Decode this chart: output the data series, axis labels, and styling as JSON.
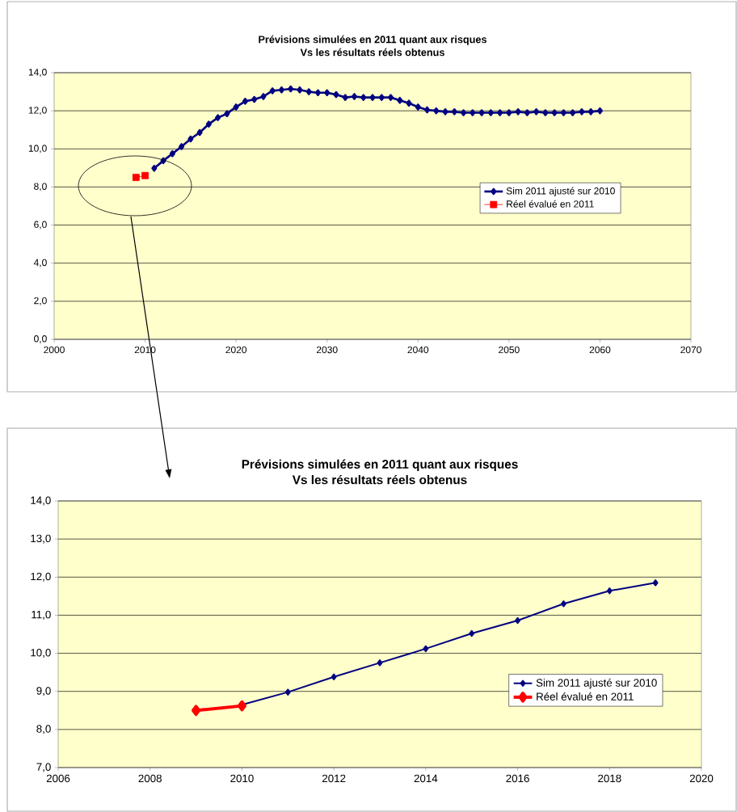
{
  "chart_data": [
    {
      "type": "line",
      "title": "Prévisions simulées en 2011 quant aux risques",
      "subtitle": "Vs les résultats réels obtenus",
      "xlim": [
        2000,
        2070
      ],
      "xticks": [
        2000,
        2010,
        2020,
        2030,
        2040,
        2050,
        2060,
        2070
      ],
      "ylim": [
        0,
        14
      ],
      "yticks": [
        {
          "value": 0,
          "label": "0,0"
        },
        {
          "value": 2,
          "label": "2,0"
        },
        {
          "value": 4,
          "label": "4,0"
        },
        {
          "value": 6,
          "label": "6,0"
        },
        {
          "value": 8,
          "label": "8,0"
        },
        {
          "value": 10,
          "label": "10,0"
        },
        {
          "value": 12,
          "label": "12,0"
        },
        {
          "value": 14,
          "label": "14,0"
        }
      ],
      "grid": "y",
      "legend": "right",
      "series": [
        {
          "name": "Sim 2011 ajusté sur 2010",
          "color": "#000080",
          "marker": "diamond",
          "x": [
            2011,
            2012,
            2013,
            2014,
            2015,
            2016,
            2017,
            2018,
            2019,
            2020,
            2021,
            2022,
            2023,
            2024,
            2025,
            2026,
            2027,
            2028,
            2029,
            2030,
            2031,
            2032,
            2033,
            2034,
            2035,
            2036,
            2037,
            2038,
            2039,
            2040,
            2041,
            2042,
            2043,
            2044,
            2045,
            2046,
            2047,
            2048,
            2049,
            2050,
            2051,
            2052,
            2053,
            2054,
            2055,
            2056,
            2057,
            2058,
            2059,
            2060
          ],
          "values": [
            8.98,
            9.38,
            9.75,
            10.12,
            10.52,
            10.86,
            11.3,
            11.64,
            11.85,
            12.2,
            12.5,
            12.6,
            12.75,
            13.05,
            13.1,
            13.15,
            13.1,
            13.0,
            12.95,
            12.95,
            12.85,
            12.7,
            12.75,
            12.7,
            12.7,
            12.7,
            12.7,
            12.55,
            12.4,
            12.2,
            12.05,
            12.0,
            11.95,
            11.95,
            11.9,
            11.9,
            11.9,
            11.9,
            11.9,
            11.9,
            11.95,
            11.9,
            11.95,
            11.9,
            11.9,
            11.9,
            11.9,
            11.95,
            11.95,
            12.0
          ]
        },
        {
          "name": "Réel évalué en 2011",
          "color": "#ff0000",
          "marker": "square",
          "x": [
            2009,
            2010
          ],
          "values": [
            8.5,
            8.6
          ]
        }
      ]
    },
    {
      "type": "line",
      "title": "Prévisions simulées en 2011 quant aux risques",
      "subtitle": "Vs les résultats réels obtenus",
      "xlim": [
        2006,
        2020
      ],
      "xticks": [
        2006,
        2008,
        2010,
        2012,
        2014,
        2016,
        2018,
        2020
      ],
      "ylim": [
        7,
        14
      ],
      "yticks": [
        {
          "value": 7,
          "label": "7,0"
        },
        {
          "value": 8,
          "label": "8,0"
        },
        {
          "value": 9,
          "label": "9,0"
        },
        {
          "value": 10,
          "label": "10,0"
        },
        {
          "value": 11,
          "label": "11,0"
        },
        {
          "value": 12,
          "label": "12,0"
        },
        {
          "value": 13,
          "label": "13,0"
        },
        {
          "value": 14,
          "label": "14,0"
        }
      ],
      "grid": "y",
      "legend": "bottom right",
      "series": [
        {
          "name": "Sim 2011 ajusté sur 2010",
          "color": "#000080",
          "marker": "diamond",
          "x": [
            2010,
            2011,
            2012,
            2013,
            2014,
            2015,
            2016,
            2017,
            2018,
            2019
          ],
          "values": [
            8.65,
            8.98,
            9.38,
            9.75,
            10.12,
            10.52,
            10.86,
            11.3,
            11.64,
            11.85
          ]
        },
        {
          "name": "Réel évalué en 2011",
          "color": "#ff0000",
          "marker": "diamond",
          "x": [
            2009,
            2010
          ],
          "values": [
            8.5,
            8.62
          ]
        }
      ]
    }
  ]
}
